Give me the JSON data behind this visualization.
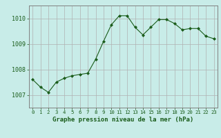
{
  "x": [
    0,
    1,
    2,
    3,
    4,
    5,
    6,
    7,
    8,
    9,
    10,
    11,
    12,
    13,
    14,
    15,
    16,
    17,
    18,
    19,
    20,
    21,
    22,
    23
  ],
  "y": [
    1007.6,
    1007.3,
    1007.1,
    1007.5,
    1007.65,
    1007.75,
    1007.8,
    1007.85,
    1008.4,
    1009.1,
    1009.75,
    1010.1,
    1010.1,
    1009.65,
    1009.35,
    1009.65,
    1009.95,
    1009.95,
    1009.8,
    1009.55,
    1009.6,
    1009.6,
    1009.3,
    1009.2
  ],
  "line_color": "#1a5c1a",
  "marker": "D",
  "marker_size": 2.0,
  "bg_color": "#c8ece8",
  "grid_color": "#b0b0b0",
  "xlabel": "Graphe pression niveau de la mer (hPa)",
  "xlabel_color": "#1a5c1a",
  "tick_color": "#1a5c1a",
  "ylim": [
    1006.5,
    1010.5
  ],
  "yticks": [
    1007,
    1008,
    1009,
    1010
  ],
  "xlim": [
    -0.5,
    23.5
  ],
  "xticks": [
    0,
    1,
    2,
    3,
    4,
    5,
    6,
    7,
    8,
    9,
    10,
    11,
    12,
    13,
    14,
    15,
    16,
    17,
    18,
    19,
    20,
    21,
    22,
    23
  ],
  "spine_color": "#808080"
}
